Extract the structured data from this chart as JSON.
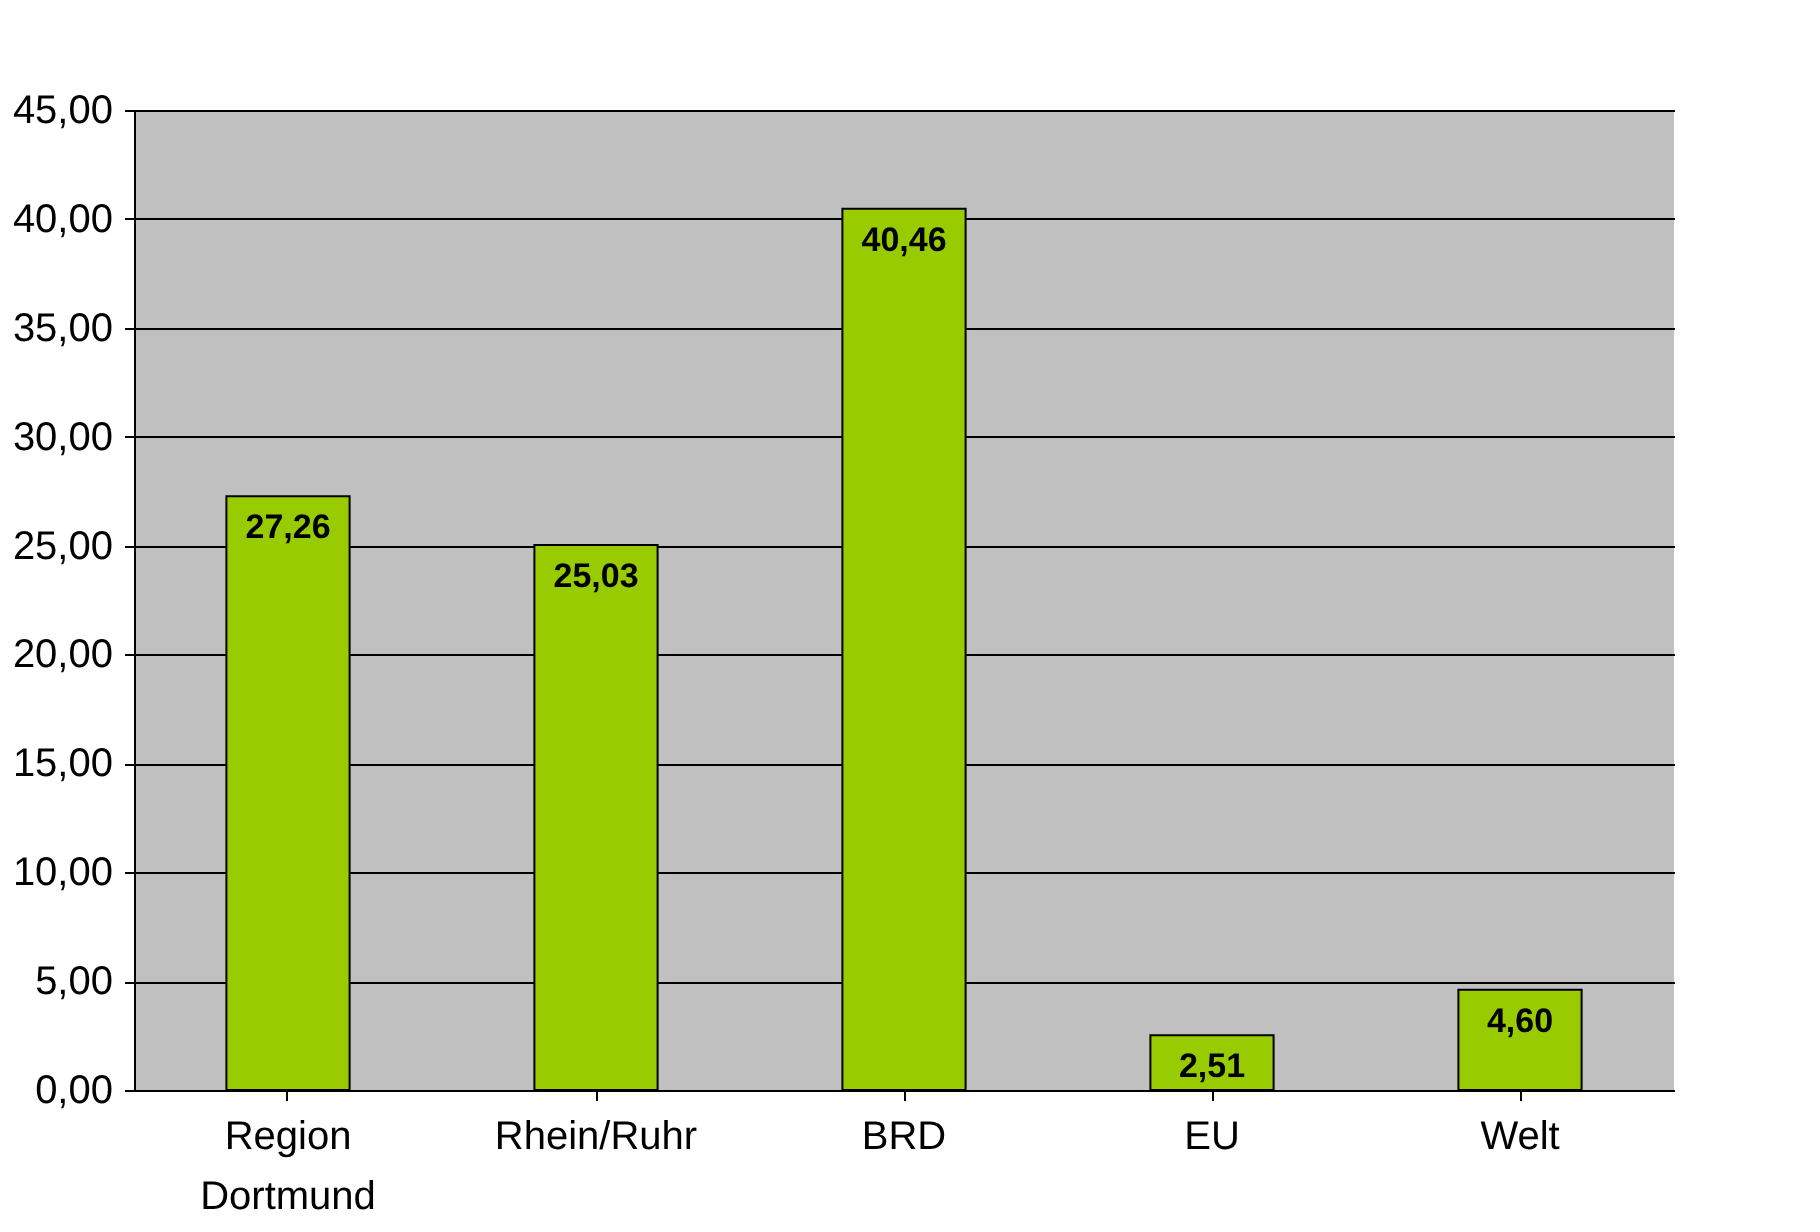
{
  "chart_data": {
    "type": "bar",
    "categories": [
      "Region Dortmund",
      "Rhein/Ruhr",
      "BRD",
      "EU",
      "Welt"
    ],
    "values": [
      27.26,
      25.03,
      40.46,
      2.51,
      4.6
    ],
    "color": "#99cc00",
    "value_labels": [
      "27,26",
      "25,03",
      "40,46",
      "2,51",
      "4,60"
    ],
    "ylim": [
      0,
      45
    ],
    "yticks": [
      {
        "value": 0,
        "label": "0,00"
      },
      {
        "value": 5,
        "label": "5,00"
      },
      {
        "value": 10,
        "label": "10,00"
      },
      {
        "value": 15,
        "label": "15,00"
      },
      {
        "value": 20,
        "label": "20,00"
      },
      {
        "value": 25,
        "label": "25,00"
      },
      {
        "value": 30,
        "label": "30,00"
      },
      {
        "value": 35,
        "label": "35,00"
      },
      {
        "value": 40,
        "label": "40,00"
      },
      {
        "value": 45,
        "label": "45,00"
      }
    ],
    "grid": "y"
  }
}
